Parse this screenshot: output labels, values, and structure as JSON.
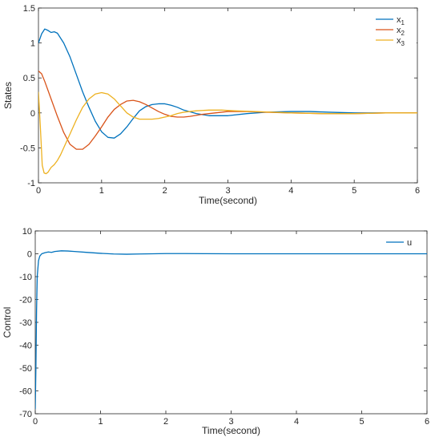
{
  "chart_data": [
    {
      "type": "line",
      "xlabel": "Time(second)",
      "ylabel": "States",
      "xlim": [
        0,
        6
      ],
      "ylim": [
        -1,
        1.5
      ],
      "xticks": [
        "0",
        "1",
        "2",
        "3",
        "4",
        "5",
        "6"
      ],
      "yticks": [
        "1.5",
        "1",
        "0.5",
        "0",
        "-0.5",
        "-1"
      ],
      "grid": false,
      "legend_position": "top-right",
      "series": [
        {
          "name": "x",
          "subscript": "1",
          "color": "#0072BD",
          "x": [
            0,
            0.05,
            0.1,
            0.15,
            0.2,
            0.25,
            0.3,
            0.4,
            0.5,
            0.6,
            0.7,
            0.8,
            0.9,
            1.0,
            1.1,
            1.2,
            1.3,
            1.4,
            1.5,
            1.6,
            1.7,
            1.8,
            1.9,
            2.0,
            2.1,
            2.2,
            2.3,
            2.5,
            2.7,
            3.0,
            3.3,
            3.6,
            4.0,
            4.3,
            4.6,
            5.0,
            5.5,
            6.0
          ],
          "y": [
            1.0,
            1.13,
            1.2,
            1.18,
            1.15,
            1.16,
            1.14,
            1.0,
            0.8,
            0.55,
            0.3,
            0.08,
            -0.12,
            -0.27,
            -0.35,
            -0.36,
            -0.3,
            -0.2,
            -0.08,
            0.03,
            0.09,
            0.12,
            0.13,
            0.13,
            0.11,
            0.08,
            0.04,
            -0.01,
            -0.04,
            -0.04,
            -0.01,
            0.01,
            0.02,
            0.02,
            0.01,
            0.0,
            0.0,
            0.0
          ]
        },
        {
          "name": "x",
          "subscript": "2",
          "color": "#D95319",
          "x": [
            0,
            0.05,
            0.1,
            0.2,
            0.3,
            0.4,
            0.5,
            0.6,
            0.7,
            0.8,
            0.9,
            1.0,
            1.1,
            1.2,
            1.3,
            1.4,
            1.5,
            1.6,
            1.7,
            1.8,
            1.9,
            2.0,
            2.1,
            2.2,
            2.3,
            2.4,
            2.6,
            2.8,
            3.0,
            3.3,
            3.6,
            4.0,
            4.5,
            5.0,
            5.5,
            6.0
          ],
          "y": [
            0.6,
            0.56,
            0.45,
            0.2,
            -0.05,
            -0.28,
            -0.45,
            -0.52,
            -0.52,
            -0.45,
            -0.33,
            -0.2,
            -0.06,
            0.05,
            0.12,
            0.17,
            0.18,
            0.16,
            0.12,
            0.07,
            0.02,
            -0.02,
            -0.05,
            -0.06,
            -0.06,
            -0.05,
            -0.02,
            0.0,
            0.02,
            0.02,
            0.01,
            0.0,
            -0.01,
            -0.01,
            0.0,
            0.0
          ]
        },
        {
          "name": "x",
          "subscript": "3",
          "color": "#EDB120",
          "x": [
            0,
            0.03,
            0.06,
            0.09,
            0.12,
            0.15,
            0.2,
            0.25,
            0.3,
            0.35,
            0.4,
            0.5,
            0.6,
            0.7,
            0.8,
            0.9,
            1.0,
            1.1,
            1.2,
            1.3,
            1.4,
            1.5,
            1.6,
            1.7,
            1.8,
            1.9,
            2.0,
            2.1,
            2.2,
            2.3,
            2.4,
            2.5,
            2.7,
            2.9,
            3.1,
            3.4,
            3.7,
            4.0,
            4.5,
            5.0,
            5.5,
            6.0
          ],
          "y": [
            0.3,
            -0.2,
            -0.75,
            -0.86,
            -0.87,
            -0.85,
            -0.78,
            -0.74,
            -0.68,
            -0.6,
            -0.5,
            -0.3,
            -0.1,
            0.08,
            0.2,
            0.27,
            0.29,
            0.27,
            0.2,
            0.1,
            0.0,
            -0.06,
            -0.09,
            -0.09,
            -0.09,
            -0.08,
            -0.06,
            -0.04,
            -0.01,
            0.01,
            0.02,
            0.03,
            0.04,
            0.04,
            0.03,
            0.02,
            0.01,
            0.0,
            -0.01,
            -0.01,
            0.0,
            0.0
          ]
        }
      ]
    },
    {
      "type": "line",
      "xlabel": "Time(second)",
      "ylabel": "Control",
      "xlim": [
        0,
        6
      ],
      "ylim": [
        -70,
        10
      ],
      "xticks": [
        "0",
        "1",
        "2",
        "3",
        "4",
        "5",
        "6"
      ],
      "yticks": [
        "10",
        "0",
        "-10",
        "-20",
        "-30",
        "-40",
        "-50",
        "-60",
        "-70"
      ],
      "grid": false,
      "legend_position": "top-right",
      "series": [
        {
          "name": "u",
          "color": "#0072BD",
          "x": [
            0,
            0.01,
            0.02,
            0.03,
            0.05,
            0.07,
            0.1,
            0.15,
            0.2,
            0.25,
            0.3,
            0.4,
            0.5,
            0.6,
            0.8,
            1.0,
            1.2,
            1.4,
            1.6,
            1.8,
            2.0,
            2.3,
            2.6,
            3.0,
            3.5,
            4.0,
            5.0,
            6.0
          ],
          "y": [
            -68,
            -50,
            -25,
            -10,
            -3,
            -1,
            0,
            0.5,
            0.8,
            0.6,
            1.0,
            1.3,
            1.2,
            1.0,
            0.6,
            0.2,
            -0.1,
            -0.2,
            -0.1,
            0.0,
            0.1,
            0.1,
            0.05,
            0.0,
            0.0,
            0.0,
            0.0,
            0.0
          ]
        }
      ]
    }
  ]
}
